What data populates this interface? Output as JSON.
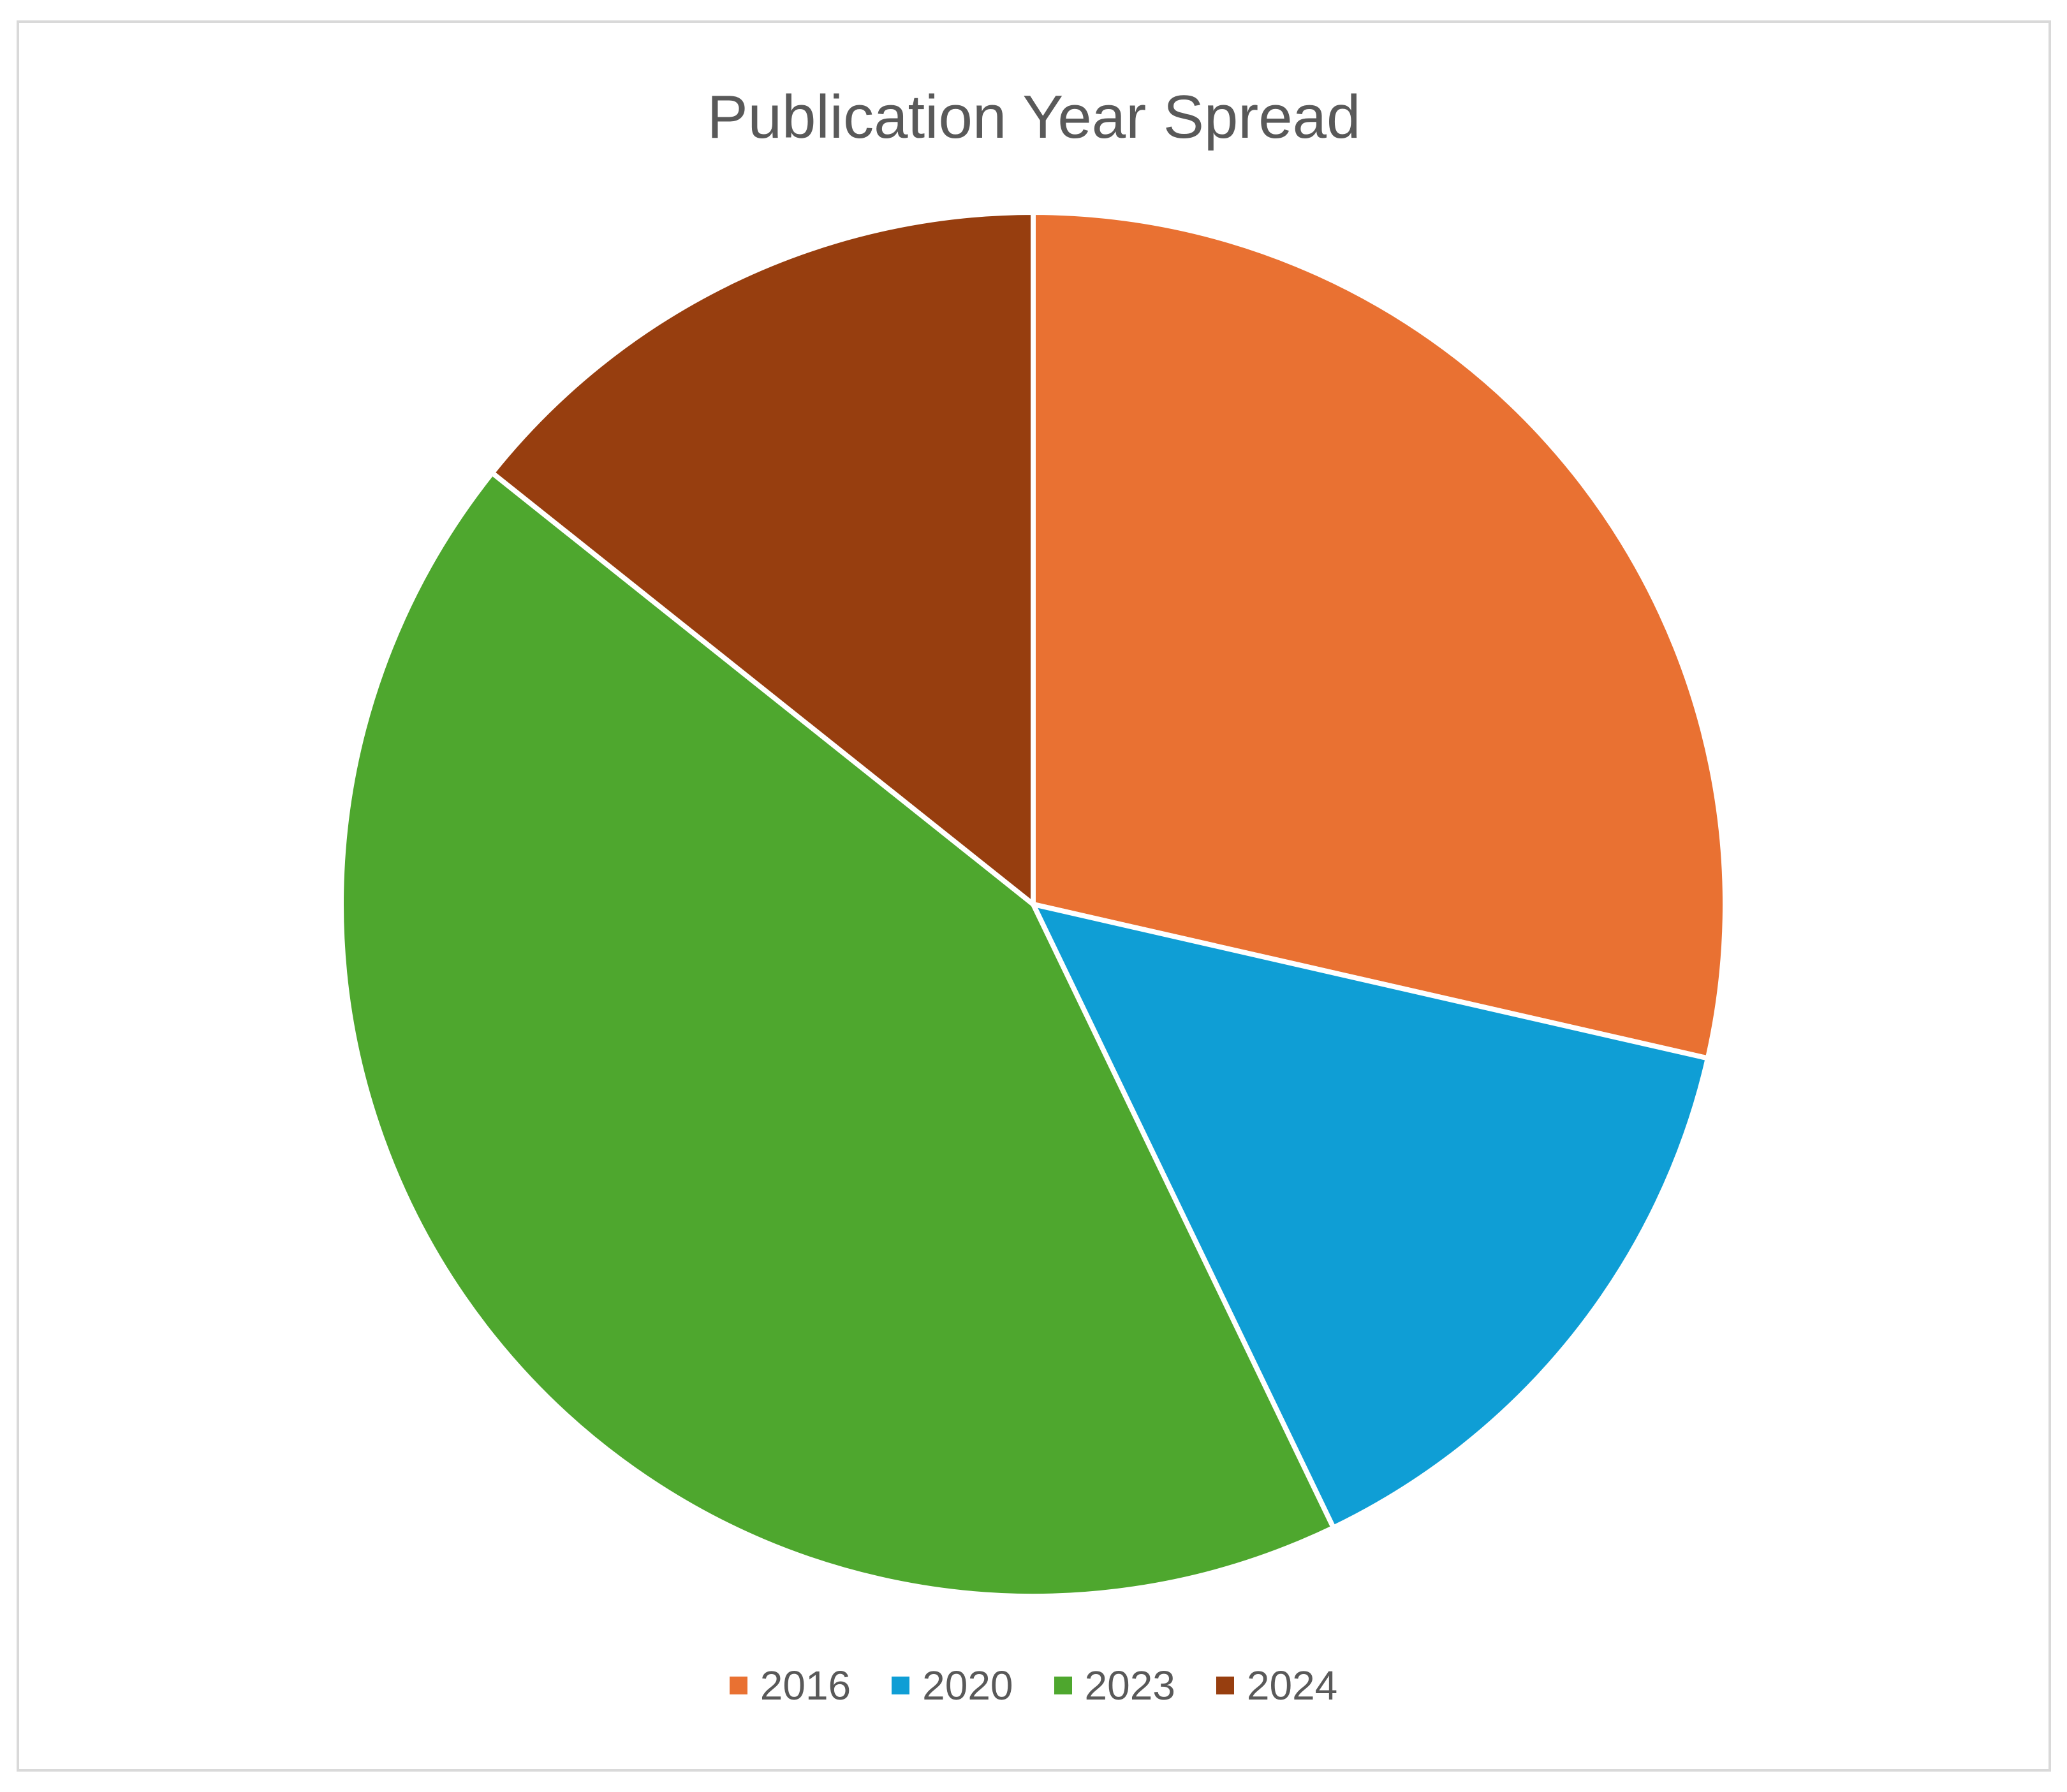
{
  "chart_data": {
    "type": "pie",
    "title": "Publication Year Spread",
    "categories": [
      "2016",
      "2020",
      "2023",
      "2024"
    ],
    "values": [
      2,
      1,
      3,
      1
    ],
    "colors": [
      "#E97132",
      "#0F9ED5",
      "#4EA72E",
      "#973E0F"
    ],
    "start_angle_deg": 0,
    "direction": "clockwise",
    "legend_position": "bottom"
  }
}
